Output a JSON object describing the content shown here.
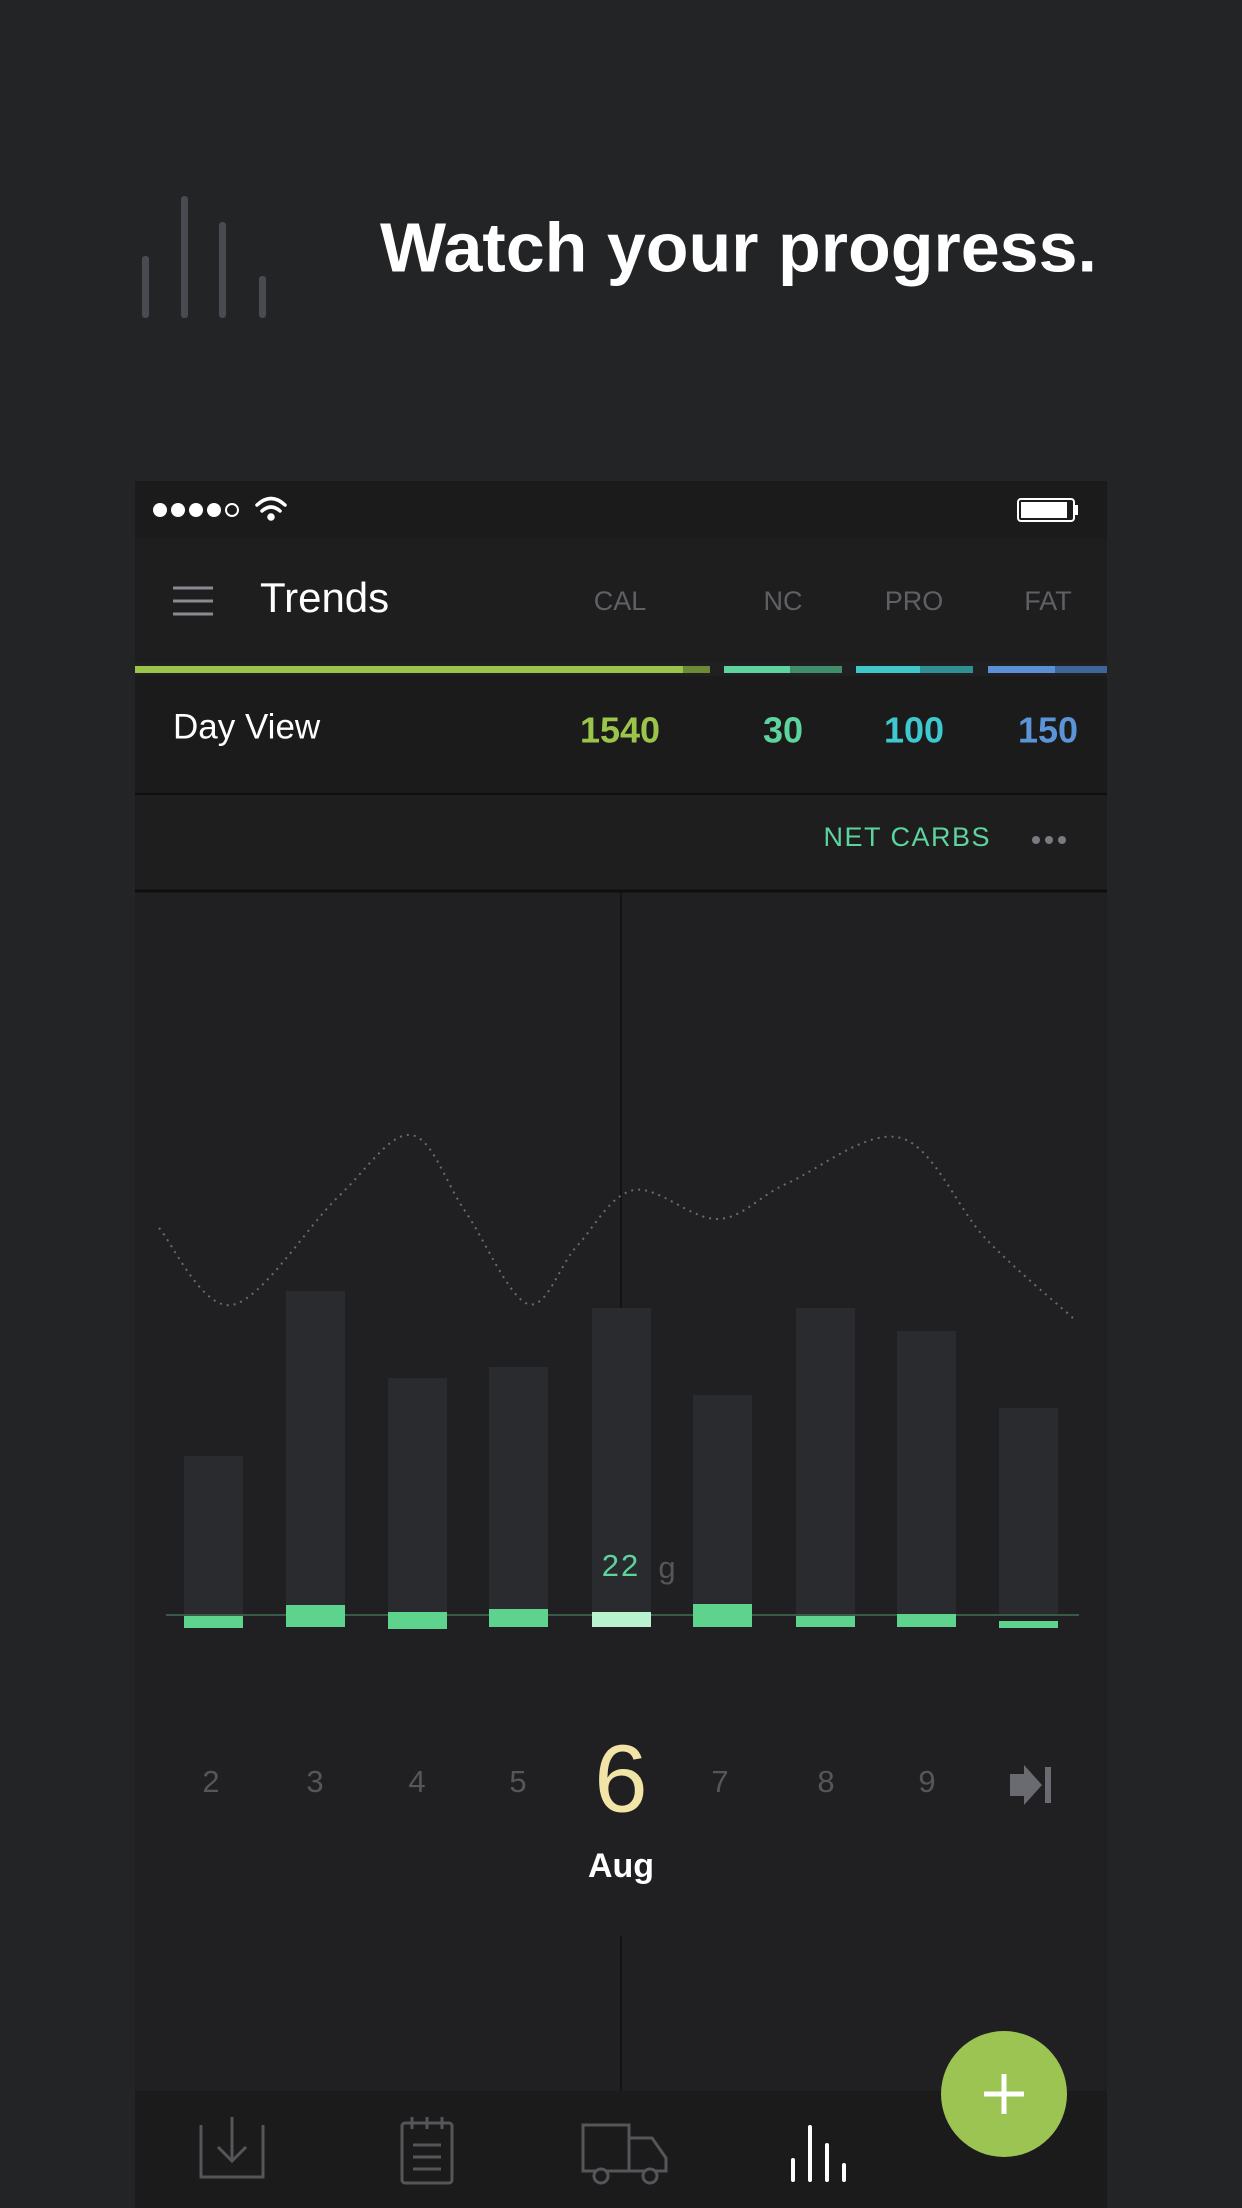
{
  "headline": "Watch your progress.",
  "app": {
    "title": "Trends",
    "columns": [
      "CAL",
      "NC",
      "PRO",
      "FAT"
    ],
    "day_view": {
      "label": "Day View",
      "values": [
        "1540",
        "30",
        "100",
        "150"
      ]
    },
    "toggle": "NET CARBS"
  },
  "chart": {
    "selected_value": "22",
    "selected_unit": "g",
    "days": [
      "2",
      "3",
      "4",
      "5",
      "6",
      "7",
      "8",
      "9"
    ],
    "month": "Aug"
  }
}
